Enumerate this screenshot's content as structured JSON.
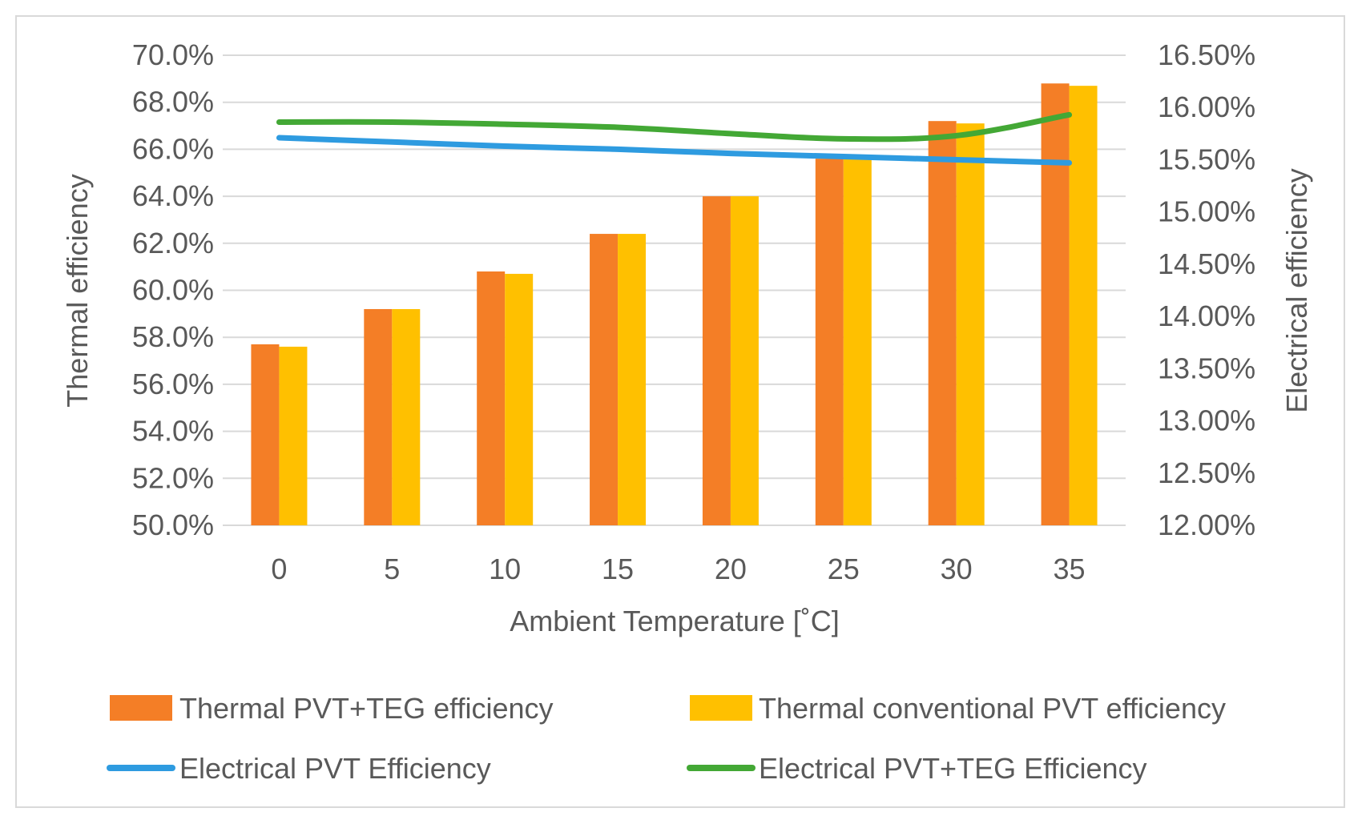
{
  "chart_data": {
    "type": "bar",
    "title": "",
    "categories": [
      "0",
      "5",
      "10",
      "15",
      "20",
      "25",
      "30",
      "35"
    ],
    "xlabel": "Ambient Temperature [˚C]",
    "ylabel": "Thermal efficiency",
    "y2label": "Electrical efficiency",
    "ylim": [
      50.0,
      70.0
    ],
    "y2lim": [
      12.0,
      16.5
    ],
    "yticks": [
      "50.0%",
      "52.0%",
      "54.0%",
      "56.0%",
      "58.0%",
      "60.0%",
      "62.0%",
      "64.0%",
      "66.0%",
      "68.0%",
      "70.0%"
    ],
    "y2ticks": [
      "12.00%",
      "12.50%",
      "13.00%",
      "13.50%",
      "14.00%",
      "14.50%",
      "15.00%",
      "15.50%",
      "16.00%",
      "16.50%"
    ],
    "grid": true,
    "legend_position": "bottom",
    "series": [
      {
        "name": "Thermal PVT+TEG efficiency",
        "kind": "bar",
        "axis": "left",
        "color": "#f47e26",
        "values": [
          57.7,
          59.2,
          60.8,
          62.4,
          64.0,
          65.6,
          67.2,
          68.8
        ]
      },
      {
        "name": "Thermal conventional PVT efficiency",
        "kind": "bar",
        "axis": "left",
        "color": "#ffc000",
        "values": [
          57.6,
          59.2,
          60.7,
          62.4,
          64.0,
          65.6,
          67.1,
          68.7
        ]
      },
      {
        "name": "Electrical PVT Efficiency",
        "kind": "line",
        "axis": "right",
        "color": "#2e9be0",
        "values": [
          15.71,
          15.67,
          15.63,
          15.6,
          15.56,
          15.53,
          15.5,
          15.47
        ]
      },
      {
        "name": "Electrical PVT+TEG Efficiency",
        "kind": "line",
        "axis": "right",
        "color": "#43a835",
        "values": [
          15.86,
          15.86,
          15.84,
          15.81,
          15.75,
          15.7,
          15.73,
          15.93
        ]
      }
    ]
  }
}
